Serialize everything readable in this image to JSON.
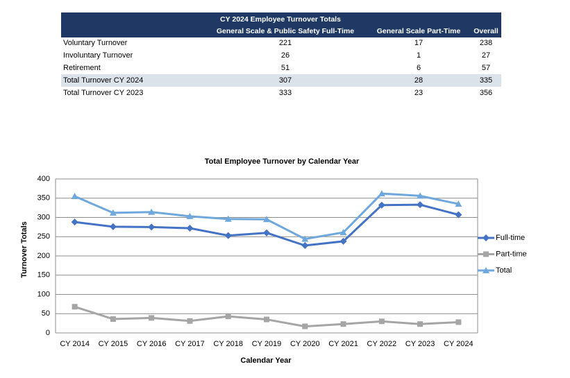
{
  "table": {
    "title": "CY 2024 Employee Turnover Totals",
    "columns": [
      "General Scale & Public Safety Full-Time",
      "General Scale Part-Time",
      "Overall"
    ],
    "rows": [
      [
        "Voluntary Turnover",
        "221",
        "17",
        "238"
      ],
      [
        "Involuntary Turnover",
        "26",
        "1",
        "27"
      ],
      [
        "Retirement",
        "51",
        "6",
        "57"
      ],
      [
        "Total Turnover CY 2024",
        "307",
        "28",
        "335"
      ],
      [
        "Total Turnover CY 2023",
        "333",
        "23",
        "356"
      ]
    ]
  },
  "chart_data": {
    "type": "line",
    "title": "Total Employee Turnover by Calendar Year",
    "x_label": "Calendar Year",
    "y_label": "Turnover Totals",
    "categories": [
      "CY 2014",
      "CY 2015",
      "CY 2016",
      "CY 2017",
      "CY 2018",
      "CY 2019",
      "CY 2020",
      "CY 2021",
      "CY 2022",
      "CY 2023",
      "CY 2024"
    ],
    "series": [
      {
        "name": "Full-time",
        "color": "#4472c4",
        "marker": "diamond",
        "values": [
          288,
          276,
          275,
          272,
          253,
          260,
          227,
          238,
          332,
          333,
          307
        ]
      },
      {
        "name": "Part-time",
        "color": "#a5a5a5",
        "marker": "square",
        "values": [
          68,
          36,
          39,
          31,
          43,
          35,
          17,
          23,
          30,
          23,
          28
        ]
      },
      {
        "name": "Total",
        "color": "#6fa8dc",
        "marker": "triangle",
        "values": [
          355,
          312,
          314,
          303,
          296,
          295,
          244,
          261,
          362,
          356,
          335
        ]
      }
    ],
    "ylim": [
      0,
      400
    ],
    "yticks": [
      0,
      50,
      100,
      150,
      200,
      250,
      300,
      350,
      400
    ],
    "grid": true,
    "legend": "right"
  }
}
